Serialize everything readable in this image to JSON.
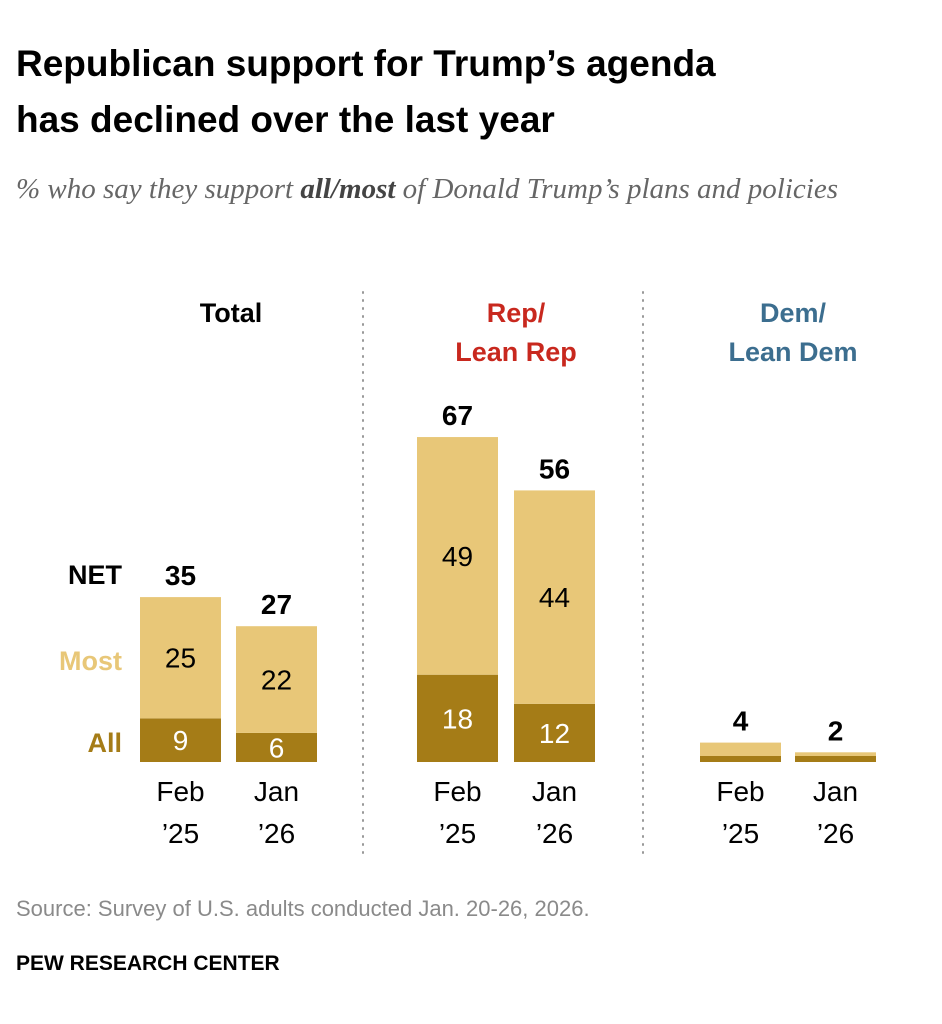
{
  "title_line1": "Republican support for Trump’s agenda",
  "title_line2": "has declined over the last year",
  "subtitle_pre": "% who say they support ",
  "subtitle_bold": "all/most",
  "subtitle_post": " of Donald Trump’s plans and policies",
  "source": "Source: Survey of U.S. adults conducted Jan. 20-26, 2026.",
  "credit": "PEW RESEARCH CENTER",
  "colors": {
    "most": "#E8C778",
    "all": "#A57C17",
    "rep": "#C8281E",
    "dem": "#3C6E8F",
    "text": "#000000"
  },
  "chart_data": {
    "type": "bar",
    "stacked": true,
    "row_labels": {
      "net": "NET",
      "most": "Most",
      "all": "All"
    },
    "series_names": [
      "All",
      "Most"
    ],
    "groups": [
      {
        "name": "Total",
        "name_lines": [
          "Total"
        ],
        "color_key": "text",
        "bars": [
          {
            "label_lines": [
              "Feb",
              "’25"
            ],
            "all": 9,
            "most": 25,
            "net": 35
          },
          {
            "label_lines": [
              "Jan",
              "’26"
            ],
            "all": 6,
            "most": 22,
            "net": 27
          }
        ]
      },
      {
        "name": "Rep/Lean Rep",
        "name_lines": [
          "Rep/",
          "Lean Rep"
        ],
        "color_key": "rep",
        "bars": [
          {
            "label_lines": [
              "Feb",
              "’25"
            ],
            "all": 18,
            "most": 49,
            "net": 67
          },
          {
            "label_lines": [
              "Jan",
              "’26"
            ],
            "all": 12,
            "most": 44,
            "net": 56
          }
        ]
      },
      {
        "name": "Dem/Lean Dem",
        "name_lines": [
          "Dem/",
          "Lean Dem"
        ],
        "color_key": "dem",
        "bars": [
          {
            "label_lines": [
              "Feb",
              "’25"
            ],
            "all": 1,
            "most": 3,
            "net": 4,
            "hide_segment_labels": true
          },
          {
            "label_lines": [
              "Jan",
              "’26"
            ],
            "all": 1,
            "most": 1,
            "net": 2,
            "hide_segment_labels": true
          }
        ]
      }
    ],
    "ylim": [
      0,
      70
    ]
  }
}
